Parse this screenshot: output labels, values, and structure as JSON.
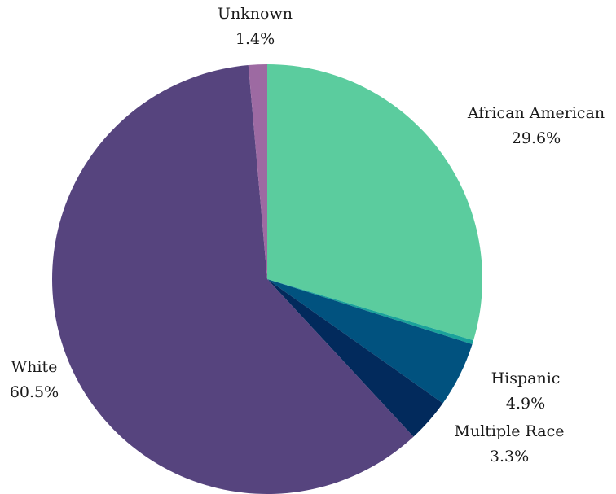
{
  "chart_data": {
    "type": "pie",
    "title": "",
    "start_angle_deg": 0,
    "direction": "clockwise",
    "slices": [
      {
        "label": "African American",
        "value": 29.6,
        "value_label": "29.6%",
        "color": "#5bcc9e"
      },
      {
        "label": "",
        "value": 0.3,
        "value_label": "",
        "color": "#1aa29a"
      },
      {
        "label": "Hispanic",
        "value": 4.9,
        "value_label": "4.9%",
        "color": "#01527f"
      },
      {
        "label": "Multiple Race",
        "value": 3.3,
        "value_label": "3.3%",
        "color": "#022a5c"
      },
      {
        "label": "White",
        "value": 60.5,
        "value_label": "60.5%",
        "color": "#56447e"
      },
      {
        "label": "Unknown",
        "value": 1.4,
        "value_label": "1.4%",
        "color": "#9d6aa2"
      }
    ]
  }
}
